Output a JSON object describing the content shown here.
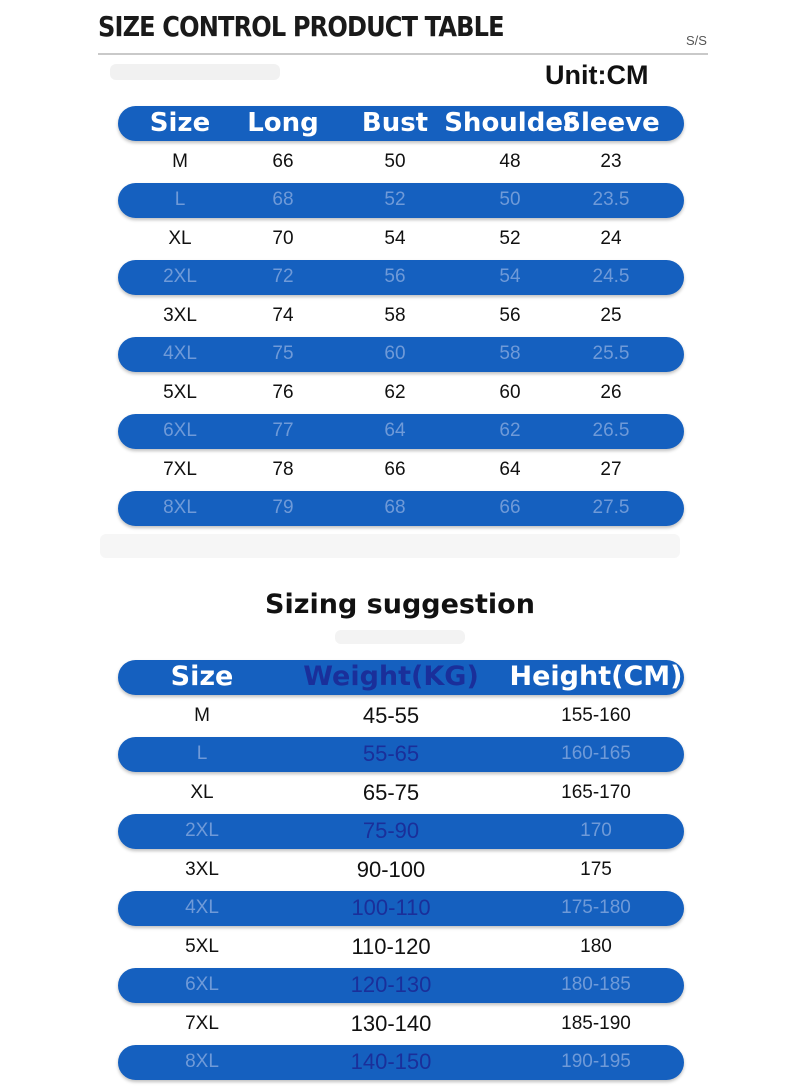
{
  "header": {
    "title": "SIZE CONTROL PRODUCT TABLE",
    "code": "S/S",
    "unit": "Unit:CM"
  },
  "size_table": {
    "columns": [
      "Size",
      "Long",
      "Bust",
      "Shoulder",
      "Sleeve"
    ],
    "rows": [
      [
        "M",
        "66",
        "50",
        "48",
        "23"
      ],
      [
        "L",
        "68",
        "52",
        "50",
        "23.5"
      ],
      [
        "XL",
        "70",
        "54",
        "52",
        "24"
      ],
      [
        "2XL",
        "72",
        "56",
        "54",
        "24.5"
      ],
      [
        "3XL",
        "74",
        "58",
        "56",
        "25"
      ],
      [
        "4XL",
        "75",
        "60",
        "58",
        "25.5"
      ],
      [
        "5XL",
        "76",
        "62",
        "60",
        "26"
      ],
      [
        "6XL",
        "77",
        "64",
        "62",
        "26.5"
      ],
      [
        "7XL",
        "78",
        "66",
        "64",
        "27"
      ],
      [
        "8XL",
        "79",
        "68",
        "66",
        "27.5"
      ]
    ]
  },
  "suggestion": {
    "title": "Sizing suggestion",
    "columns": [
      "Size",
      "Weight(KG)",
      "Height(CM)"
    ],
    "rows": [
      [
        "M",
        "45-55",
        "155-160"
      ],
      [
        "L",
        "55-65",
        "160-165"
      ],
      [
        "XL",
        "65-75",
        "165-170"
      ],
      [
        "2XL",
        "75-90",
        "170"
      ],
      [
        "3XL",
        "90-100",
        "175"
      ],
      [
        "4XL",
        "100-110",
        "175-180"
      ],
      [
        "5XL",
        "110-120",
        "180"
      ],
      [
        "6XL",
        "120-130",
        "180-185"
      ],
      [
        "7XL",
        "130-140",
        "185-190"
      ],
      [
        "8XL",
        "140-150",
        "190-195"
      ]
    ]
  },
  "colors": {
    "band": "#1560bf",
    "band_text": "#6f9ad8",
    "weight_text_on_band": "#1a2f9a"
  }
}
